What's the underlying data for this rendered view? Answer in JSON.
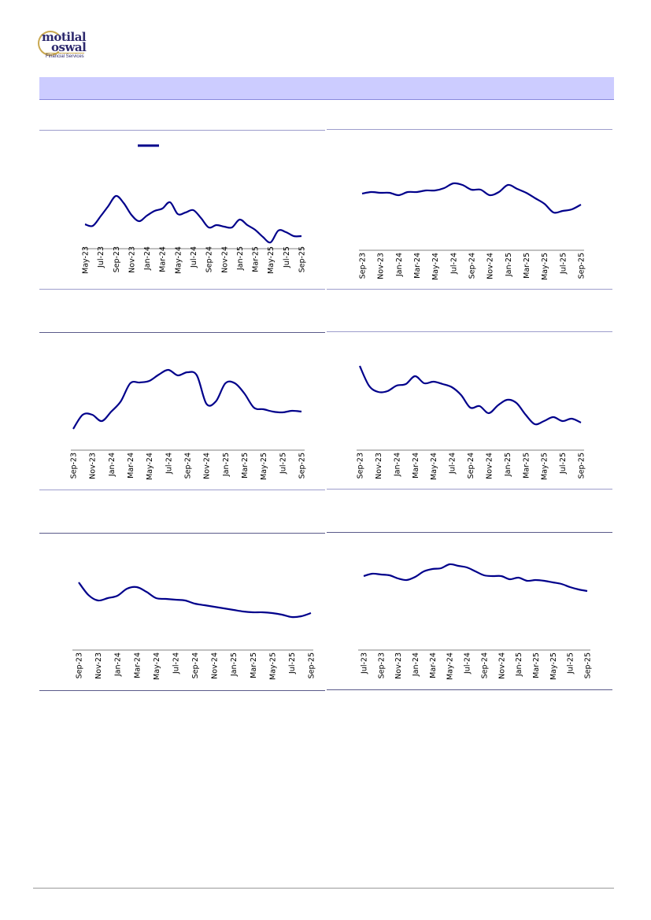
{
  "logo": {
    "line1": "motilal",
    "line2": "oswal",
    "tagline": "Financial Services"
  },
  "colors": {
    "series": "#00008b",
    "header_band": "#ccccff",
    "rule": "#9d9dcc",
    "axis": "#808080"
  },
  "chart_data": [
    {
      "type": "line",
      "title": "",
      "legend": [
        ""
      ],
      "legend_placement": "top",
      "categories": [
        "May-23",
        "Jun-23",
        "Jul-23",
        "Aug-23",
        "Sep-23",
        "Oct-23",
        "Nov-23",
        "Dec-23",
        "Jan-24",
        "Feb-24",
        "Mar-24",
        "Apr-24",
        "May-24",
        "Jun-24",
        "Jul-24",
        "Aug-24",
        "Sep-24",
        "Oct-24",
        "Nov-24",
        "Dec-24",
        "Jan-25",
        "Feb-25",
        "Mar-25",
        "Apr-25",
        "May-25",
        "Jun-25",
        "Jul-25",
        "Aug-25",
        "Sep-25"
      ],
      "tick_labels": [
        "May-23",
        "Jul-23",
        "Sep-23",
        "Nov-23",
        "Jan-24",
        "Mar-24",
        "May-24",
        "Jul-24",
        "Sep-24",
        "Nov-24",
        "Jan-25",
        "Mar-25",
        "May-25",
        "Jul-25",
        "Sep-25"
      ],
      "values": [
        35,
        33,
        45,
        58,
        71,
        62,
        47,
        39,
        46,
        52,
        55,
        63,
        48,
        50,
        53,
        43,
        31,
        34,
        32,
        31,
        41,
        34,
        28,
        19,
        12,
        27,
        25,
        20,
        20
      ],
      "ylim": [
        0,
        120
      ]
    },
    {
      "type": "line",
      "title": "",
      "categories": [
        "Sep-23",
        "Oct-23",
        "Nov-23",
        "Dec-23",
        "Jan-24",
        "Feb-24",
        "Mar-24",
        "Apr-24",
        "May-24",
        "Jun-24",
        "Jul-24",
        "Aug-24",
        "Sep-24",
        "Oct-24",
        "Nov-24",
        "Dec-24",
        "Jan-25",
        "Feb-25",
        "Mar-25",
        "Apr-25",
        "May-25",
        "Jun-25",
        "Jul-25",
        "Aug-25",
        "Sep-25"
      ],
      "tick_labels": [
        "Sep-23",
        "Nov-23",
        "Jan-24",
        "Mar-24",
        "May-24",
        "Jul-24",
        "Sep-24",
        "Nov-24",
        "Jan-25",
        "Mar-25",
        "May-25",
        "Jul-25",
        "Sep-25"
      ],
      "values": [
        74,
        76,
        75,
        75,
        72,
        76,
        76,
        78,
        78,
        81,
        87,
        85,
        79,
        79,
        72,
        76,
        85,
        80,
        75,
        68,
        61,
        50,
        52,
        54,
        60
      ],
      "ylim": [
        0,
        120
      ]
    },
    {
      "type": "line",
      "title": "",
      "categories": [
        "Sep-23",
        "Oct-23",
        "Nov-23",
        "Dec-23",
        "Jan-24",
        "Feb-24",
        "Mar-24",
        "Apr-24",
        "May-24",
        "Jun-24",
        "Jul-24",
        "Aug-24",
        "Sep-24",
        "Oct-24",
        "Nov-24",
        "Dec-24",
        "Jan-25",
        "Feb-25",
        "Mar-25",
        "Apr-25",
        "May-25",
        "Jun-25",
        "Jul-25",
        "Aug-25",
        "Sep-25"
      ],
      "tick_labels": [
        "Sep-23",
        "Nov-23",
        "Jan-24",
        "Mar-24",
        "May-24",
        "Jul-24",
        "Sep-24",
        "Nov-24",
        "Jan-25",
        "Mar-25",
        "May-25",
        "Jul-25",
        "Sep-25"
      ],
      "values": [
        30,
        48,
        48,
        40,
        52,
        65,
        88,
        89,
        91,
        99,
        105,
        98,
        102,
        98,
        62,
        65,
        88,
        88,
        75,
        57,
        55,
        52,
        51,
        53,
        52
      ],
      "ylim": [
        0,
        120
      ]
    },
    {
      "type": "line",
      "title": "",
      "categories": [
        "Sep-23",
        "Oct-23",
        "Nov-23",
        "Dec-23",
        "Jan-24",
        "Feb-24",
        "Mar-24",
        "Apr-24",
        "May-24",
        "Jun-24",
        "Jul-24",
        "Aug-24",
        "Sep-24",
        "Oct-24",
        "Nov-24",
        "Dec-24",
        "Jan-25",
        "Feb-25",
        "Mar-25",
        "Apr-25",
        "May-25",
        "Jun-25",
        "Jul-25",
        "Aug-25",
        "Sep-25"
      ],
      "tick_labels": [
        "Sep-23",
        "Nov-23",
        "Jan-24",
        "Mar-24",
        "May-24",
        "Jul-24",
        "Sep-24",
        "Nov-24",
        "Jan-25",
        "Mar-25",
        "May-25",
        "Jul-25",
        "Sep-25"
      ],
      "values": [
        110,
        85,
        77,
        78,
        85,
        87,
        97,
        88,
        90,
        87,
        83,
        73,
        57,
        59,
        50,
        60,
        67,
        63,
        48,
        36,
        40,
        45,
        40,
        43,
        38
      ],
      "ylim": [
        0,
        120
      ]
    },
    {
      "type": "line",
      "title": "",
      "categories": [
        "Sep-23",
        "Oct-23",
        "Nov-23",
        "Dec-23",
        "Jan-24",
        "Feb-24",
        "Mar-24",
        "Apr-24",
        "May-24",
        "Jun-24",
        "Jul-24",
        "Aug-24",
        "Sep-24",
        "Oct-24",
        "Nov-24",
        "Dec-24",
        "Jan-25",
        "Feb-25",
        "Mar-25",
        "Apr-25",
        "May-25",
        "Jun-25",
        "Jul-25",
        "Aug-25",
        "Sep-25"
      ],
      "tick_labels": [
        "Sep-23",
        "Nov-23",
        "Jan-24",
        "Mar-24",
        "May-24",
        "Jul-24",
        "Sep-24",
        "Nov-24",
        "Jan-25",
        "Mar-25",
        "May-25",
        "Jul-25",
        "Sep-25"
      ],
      "values": [
        90,
        74,
        67,
        70,
        73,
        82,
        84,
        78,
        70,
        69,
        68,
        67,
        63,
        61,
        59,
        57,
        55,
        53,
        52,
        52,
        51,
        49,
        46,
        47,
        51
      ],
      "ylim": [
        0,
        120
      ]
    },
    {
      "type": "line",
      "title": "",
      "categories": [
        "Jul-23",
        "Aug-23",
        "Sep-23",
        "Oct-23",
        "Nov-23",
        "Dec-23",
        "Jan-24",
        "Feb-24",
        "Mar-24",
        "Apr-24",
        "May-24",
        "Jun-24",
        "Jul-24",
        "Aug-24",
        "Sep-24",
        "Oct-24",
        "Nov-24",
        "Dec-24",
        "Jan-25",
        "Feb-25",
        "Mar-25",
        "Apr-25",
        "May-25",
        "Jun-25",
        "Jul-25",
        "Aug-25",
        "Sep-25"
      ],
      "tick_labels": [
        "Jul-23",
        "Sep-23",
        "Nov-23",
        "Jan-24",
        "Mar-24",
        "May-24",
        "Jul-24",
        "Sep-24",
        "Nov-24",
        "Jan-25",
        "Mar-25",
        "May-25",
        "Jul-25",
        "Sep-25"
      ],
      "values": [
        98,
        101,
        100,
        99,
        95,
        93,
        97,
        104,
        107,
        108,
        113,
        111,
        109,
        104,
        99,
        98,
        98,
        94,
        96,
        92,
        93,
        92,
        90,
        88,
        84,
        81,
        79
      ],
      "ylim": [
        0,
        140
      ]
    }
  ]
}
